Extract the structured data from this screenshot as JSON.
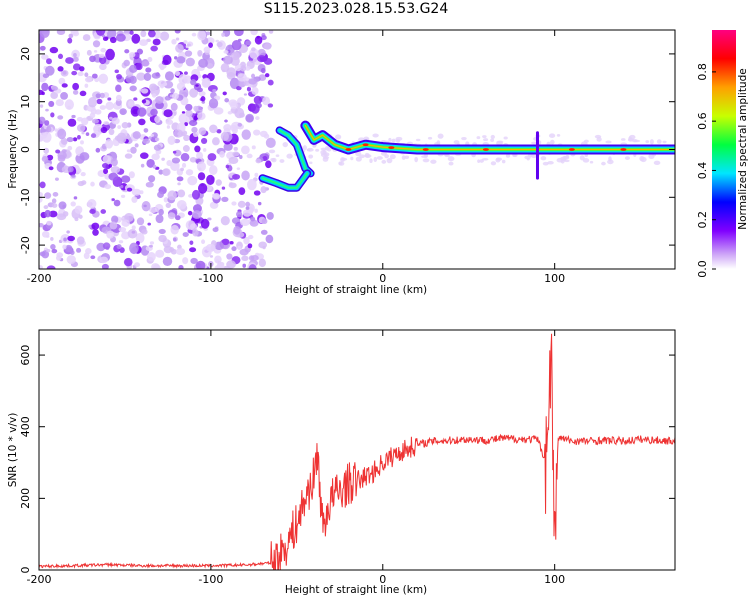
{
  "title": "S115.2023.028.15.53.G24",
  "chart_data": [
    {
      "type": "heatmap",
      "title": "",
      "xlabel": "Height of straight line (km)",
      "ylabel": "Frequency (Hz)",
      "xlim": [
        -200,
        170
      ],
      "ylim": [
        -25,
        25
      ],
      "xticks": [
        -200,
        -100,
        0,
        100
      ],
      "yticks": [
        -20,
        -10,
        0,
        10,
        20
      ],
      "colorbar": {
        "label": "Normalized spectral amplitude",
        "range": [
          0,
          0.97
        ],
        "ticks": [
          "0.0",
          "0.2",
          "0.4",
          "0.6",
          "0.8"
        ],
        "colors": [
          "#ffffff",
          "#cfa8f7",
          "#8000ff",
          "#0000ff",
          "#00e6ff",
          "#00ff40",
          "#c8ff00",
          "#ffa000",
          "#ff0000",
          "#ff0080"
        ]
      },
      "features": {
        "noise_region_x": [
          -200,
          -65
        ],
        "branch_upper": [
          [
            -60,
            4
          ],
          [
            -55,
            3
          ],
          [
            -50,
            1
          ],
          [
            -47,
            -2
          ],
          [
            -45,
            -4
          ],
          [
            -42,
            -5
          ]
        ],
        "branch_lower": [
          [
            -70,
            -6
          ],
          [
            -62,
            -7
          ],
          [
            -55,
            -8
          ],
          [
            -50,
            -8
          ],
          [
            -46,
            -6
          ],
          [
            -44,
            -5
          ]
        ],
        "converging_trace": [
          [
            -45,
            5
          ],
          [
            -40,
            2
          ],
          [
            -35,
            3
          ],
          [
            -28,
            1
          ],
          [
            -20,
            0
          ],
          [
            -10,
            1
          ],
          [
            0,
            0.5
          ],
          [
            20,
            0
          ],
          [
            60,
            0
          ],
          [
            100,
            0
          ],
          [
            170,
            0
          ]
        ],
        "spike_x": 90
      }
    },
    {
      "type": "line",
      "title": "",
      "xlabel": "Height of straight line (km)",
      "ylabel": "SNR (10 * v/v)",
      "xlim": [
        -200,
        170
      ],
      "ylim": [
        0,
        670
      ],
      "xticks": [
        -200,
        -100,
        0,
        100
      ],
      "yticks": [
        0,
        200,
        400,
        600
      ],
      "line_color": "#ee3333",
      "series": [
        {
          "x": [
            -200,
            -180,
            -160,
            -140,
            -120,
            -100,
            -80,
            -65,
            -60,
            -55,
            -50,
            -45,
            -40,
            -38,
            -35,
            -30,
            -25,
            -20,
            -15,
            -10,
            -5,
            0,
            10,
            20,
            30,
            40,
            50,
            60,
            70,
            80,
            90,
            95,
            98,
            100,
            102,
            110,
            120,
            130,
            140,
            150,
            160,
            170
          ],
          "values": [
            10,
            12,
            15,
            12,
            12,
            12,
            14,
            20,
            40,
            80,
            130,
            200,
            260,
            330,
            120,
            200,
            220,
            240,
            250,
            260,
            275,
            300,
            330,
            350,
            360,
            362,
            365,
            362,
            368,
            365,
            365,
            300,
            620,
            40,
            370,
            360,
            360,
            362,
            360,
            365,
            362,
            360
          ]
        }
      ]
    }
  ]
}
